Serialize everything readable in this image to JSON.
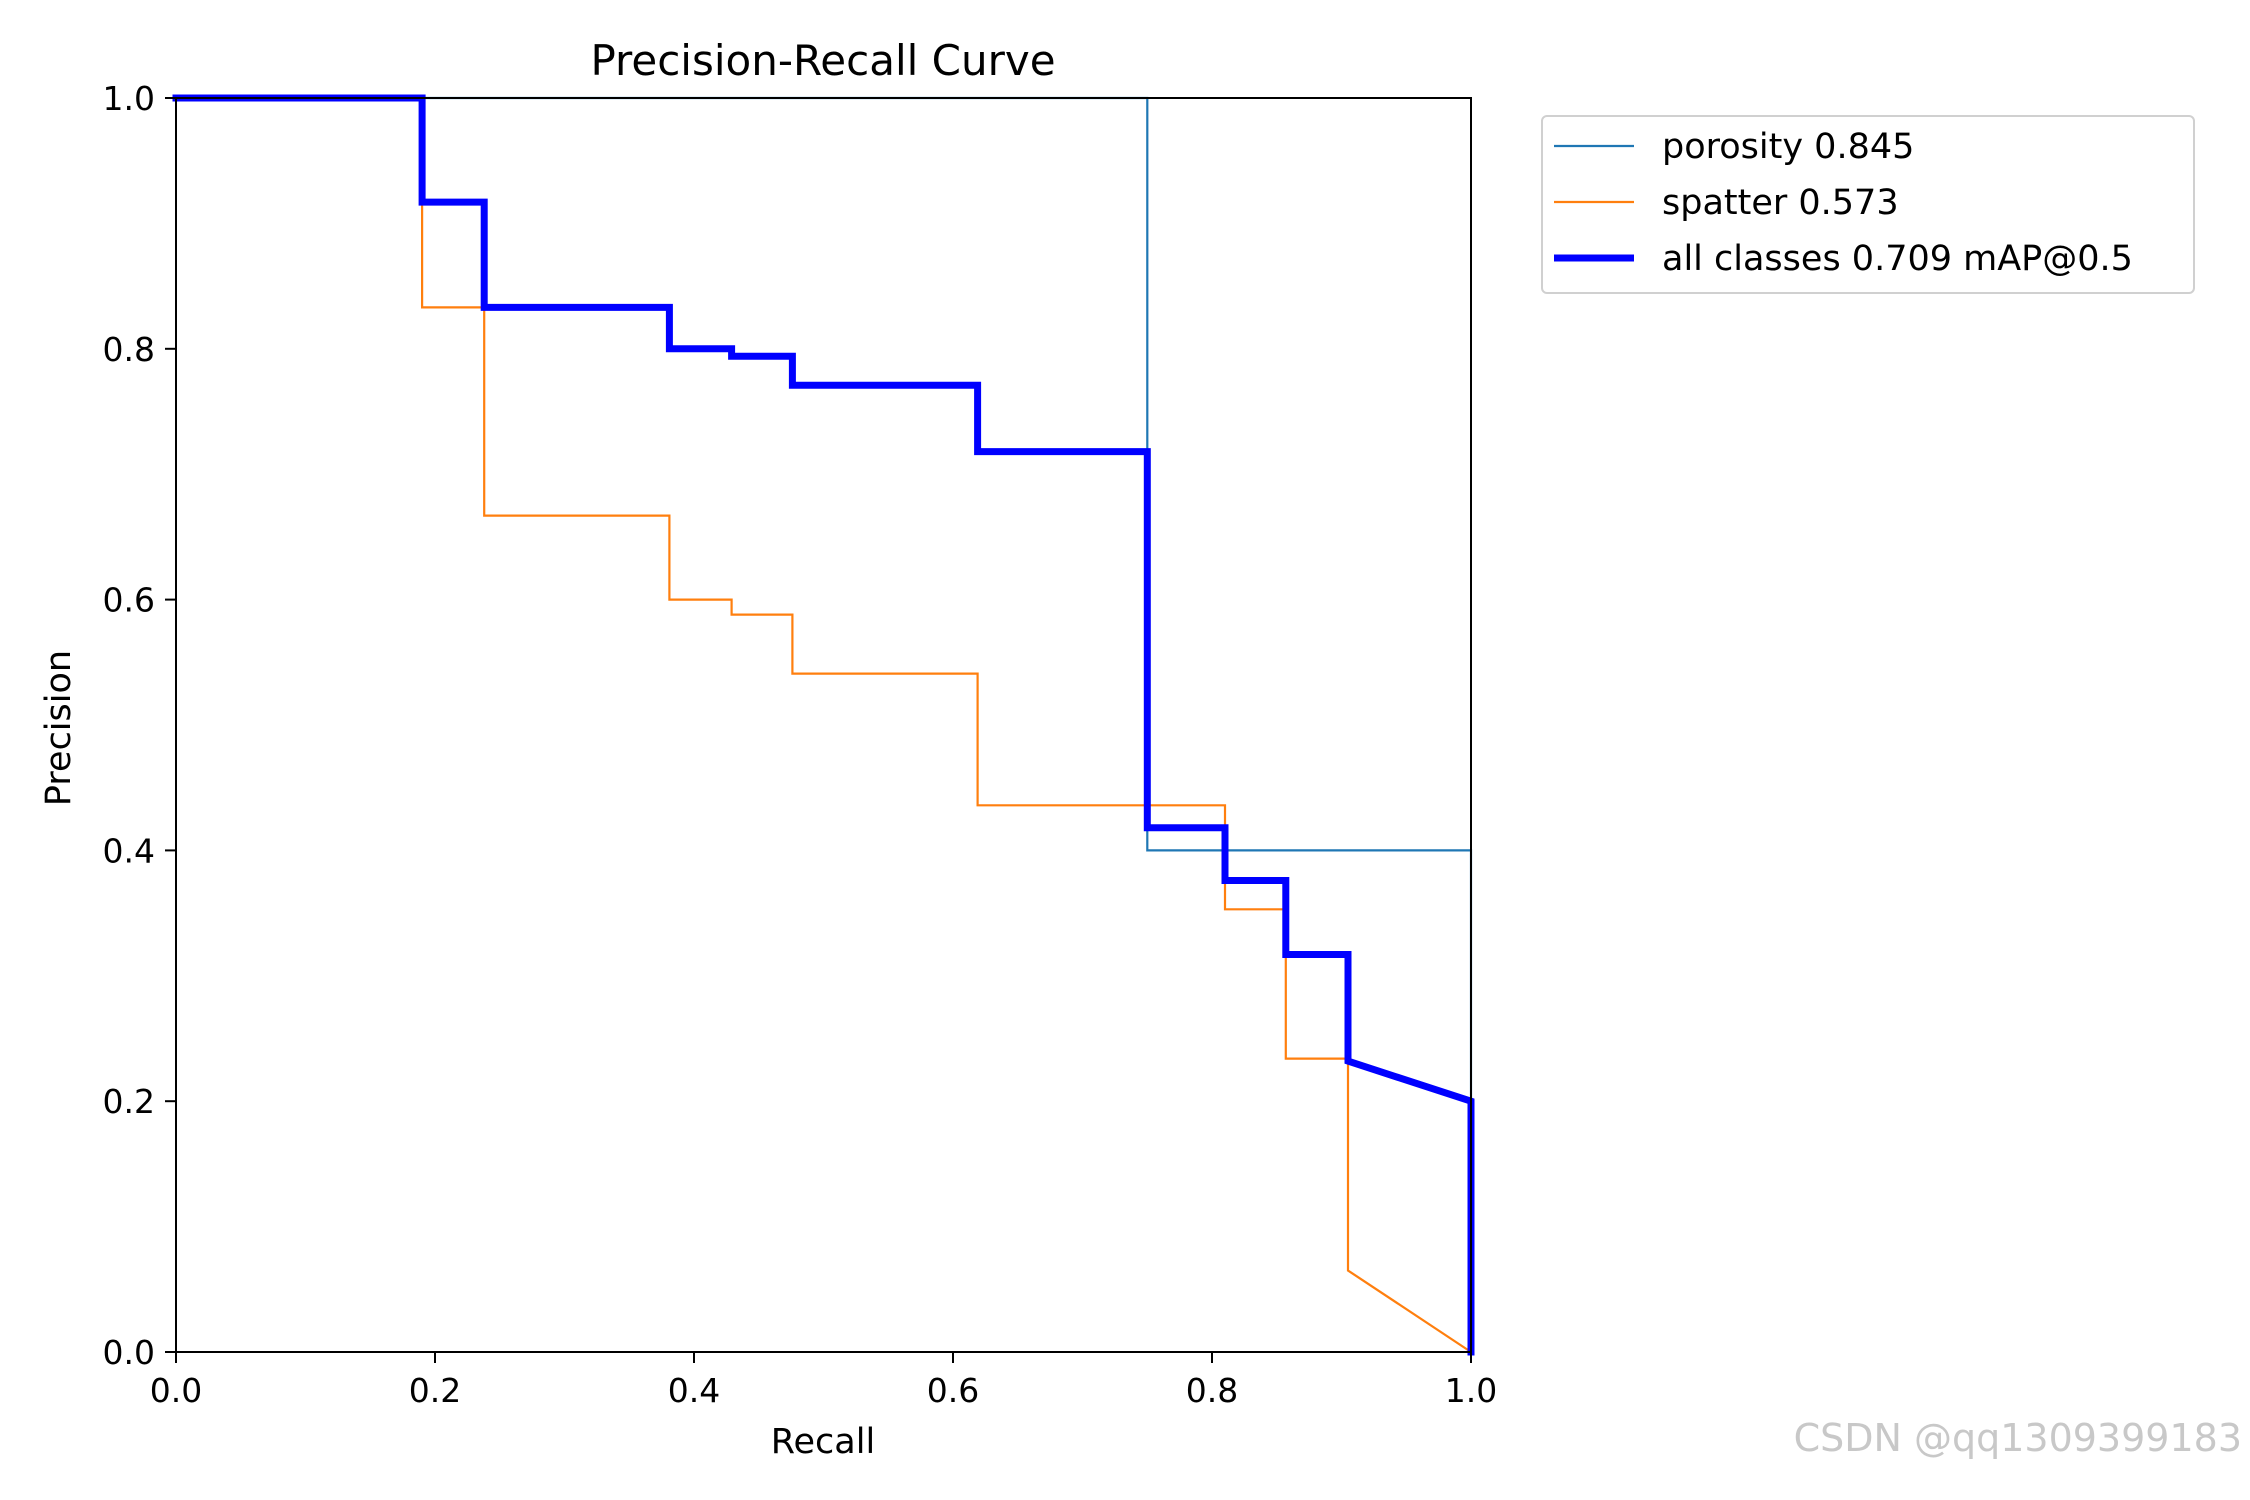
{
  "chart_data": {
    "type": "line",
    "title": "Precision-Recall Curve",
    "xlabel": "Recall",
    "ylabel": "Precision",
    "xlim": [
      0,
      1
    ],
    "ylim": [
      0,
      1
    ],
    "xticks": [
      "0.0",
      "0.2",
      "0.4",
      "0.6",
      "0.8",
      "1.0"
    ],
    "yticks": [
      "0.0",
      "0.2",
      "0.4",
      "0.6",
      "0.8",
      "1.0"
    ],
    "legend_position": "outside-top-right",
    "series": [
      {
        "name": "porosity 0.845",
        "color": "#1f77b4",
        "linewidth": "thin",
        "x": [
          0.0,
          0.75,
          0.75,
          1.0,
          1.0
        ],
        "y": [
          1.0,
          1.0,
          0.4,
          0.4,
          0.0
        ]
      },
      {
        "name": "spatter 0.573",
        "color": "#ff7f0e",
        "linewidth": "thin",
        "x": [
          0.0,
          0.19,
          0.19,
          0.238,
          0.238,
          0.381,
          0.381,
          0.429,
          0.429,
          0.476,
          0.476,
          0.619,
          0.619,
          0.81,
          0.81,
          0.857,
          0.857,
          0.905,
          0.905,
          1.0
        ],
        "y": [
          1.0,
          1.0,
          0.833,
          0.833,
          0.667,
          0.667,
          0.6,
          0.6,
          0.588,
          0.588,
          0.541,
          0.541,
          0.436,
          0.436,
          0.353,
          0.353,
          0.234,
          0.234,
          0.065,
          0.0
        ]
      },
      {
        "name": "all classes 0.709 mAP@0.5",
        "color": "#0000ff",
        "linewidth": "thick",
        "x": [
          0.0,
          0.19,
          0.19,
          0.238,
          0.238,
          0.381,
          0.381,
          0.429,
          0.429,
          0.476,
          0.476,
          0.619,
          0.619,
          0.75,
          0.75,
          0.81,
          0.81,
          0.857,
          0.857,
          0.905,
          0.905,
          1.0,
          1.0
        ],
        "y": [
          1.0,
          1.0,
          0.917,
          0.917,
          0.833,
          0.833,
          0.8,
          0.8,
          0.794,
          0.794,
          0.771,
          0.771,
          0.718,
          0.718,
          0.418,
          0.418,
          0.376,
          0.376,
          0.317,
          0.317,
          0.232,
          0.2,
          0.0
        ]
      }
    ]
  },
  "watermark": "CSDN @qq1309399183"
}
